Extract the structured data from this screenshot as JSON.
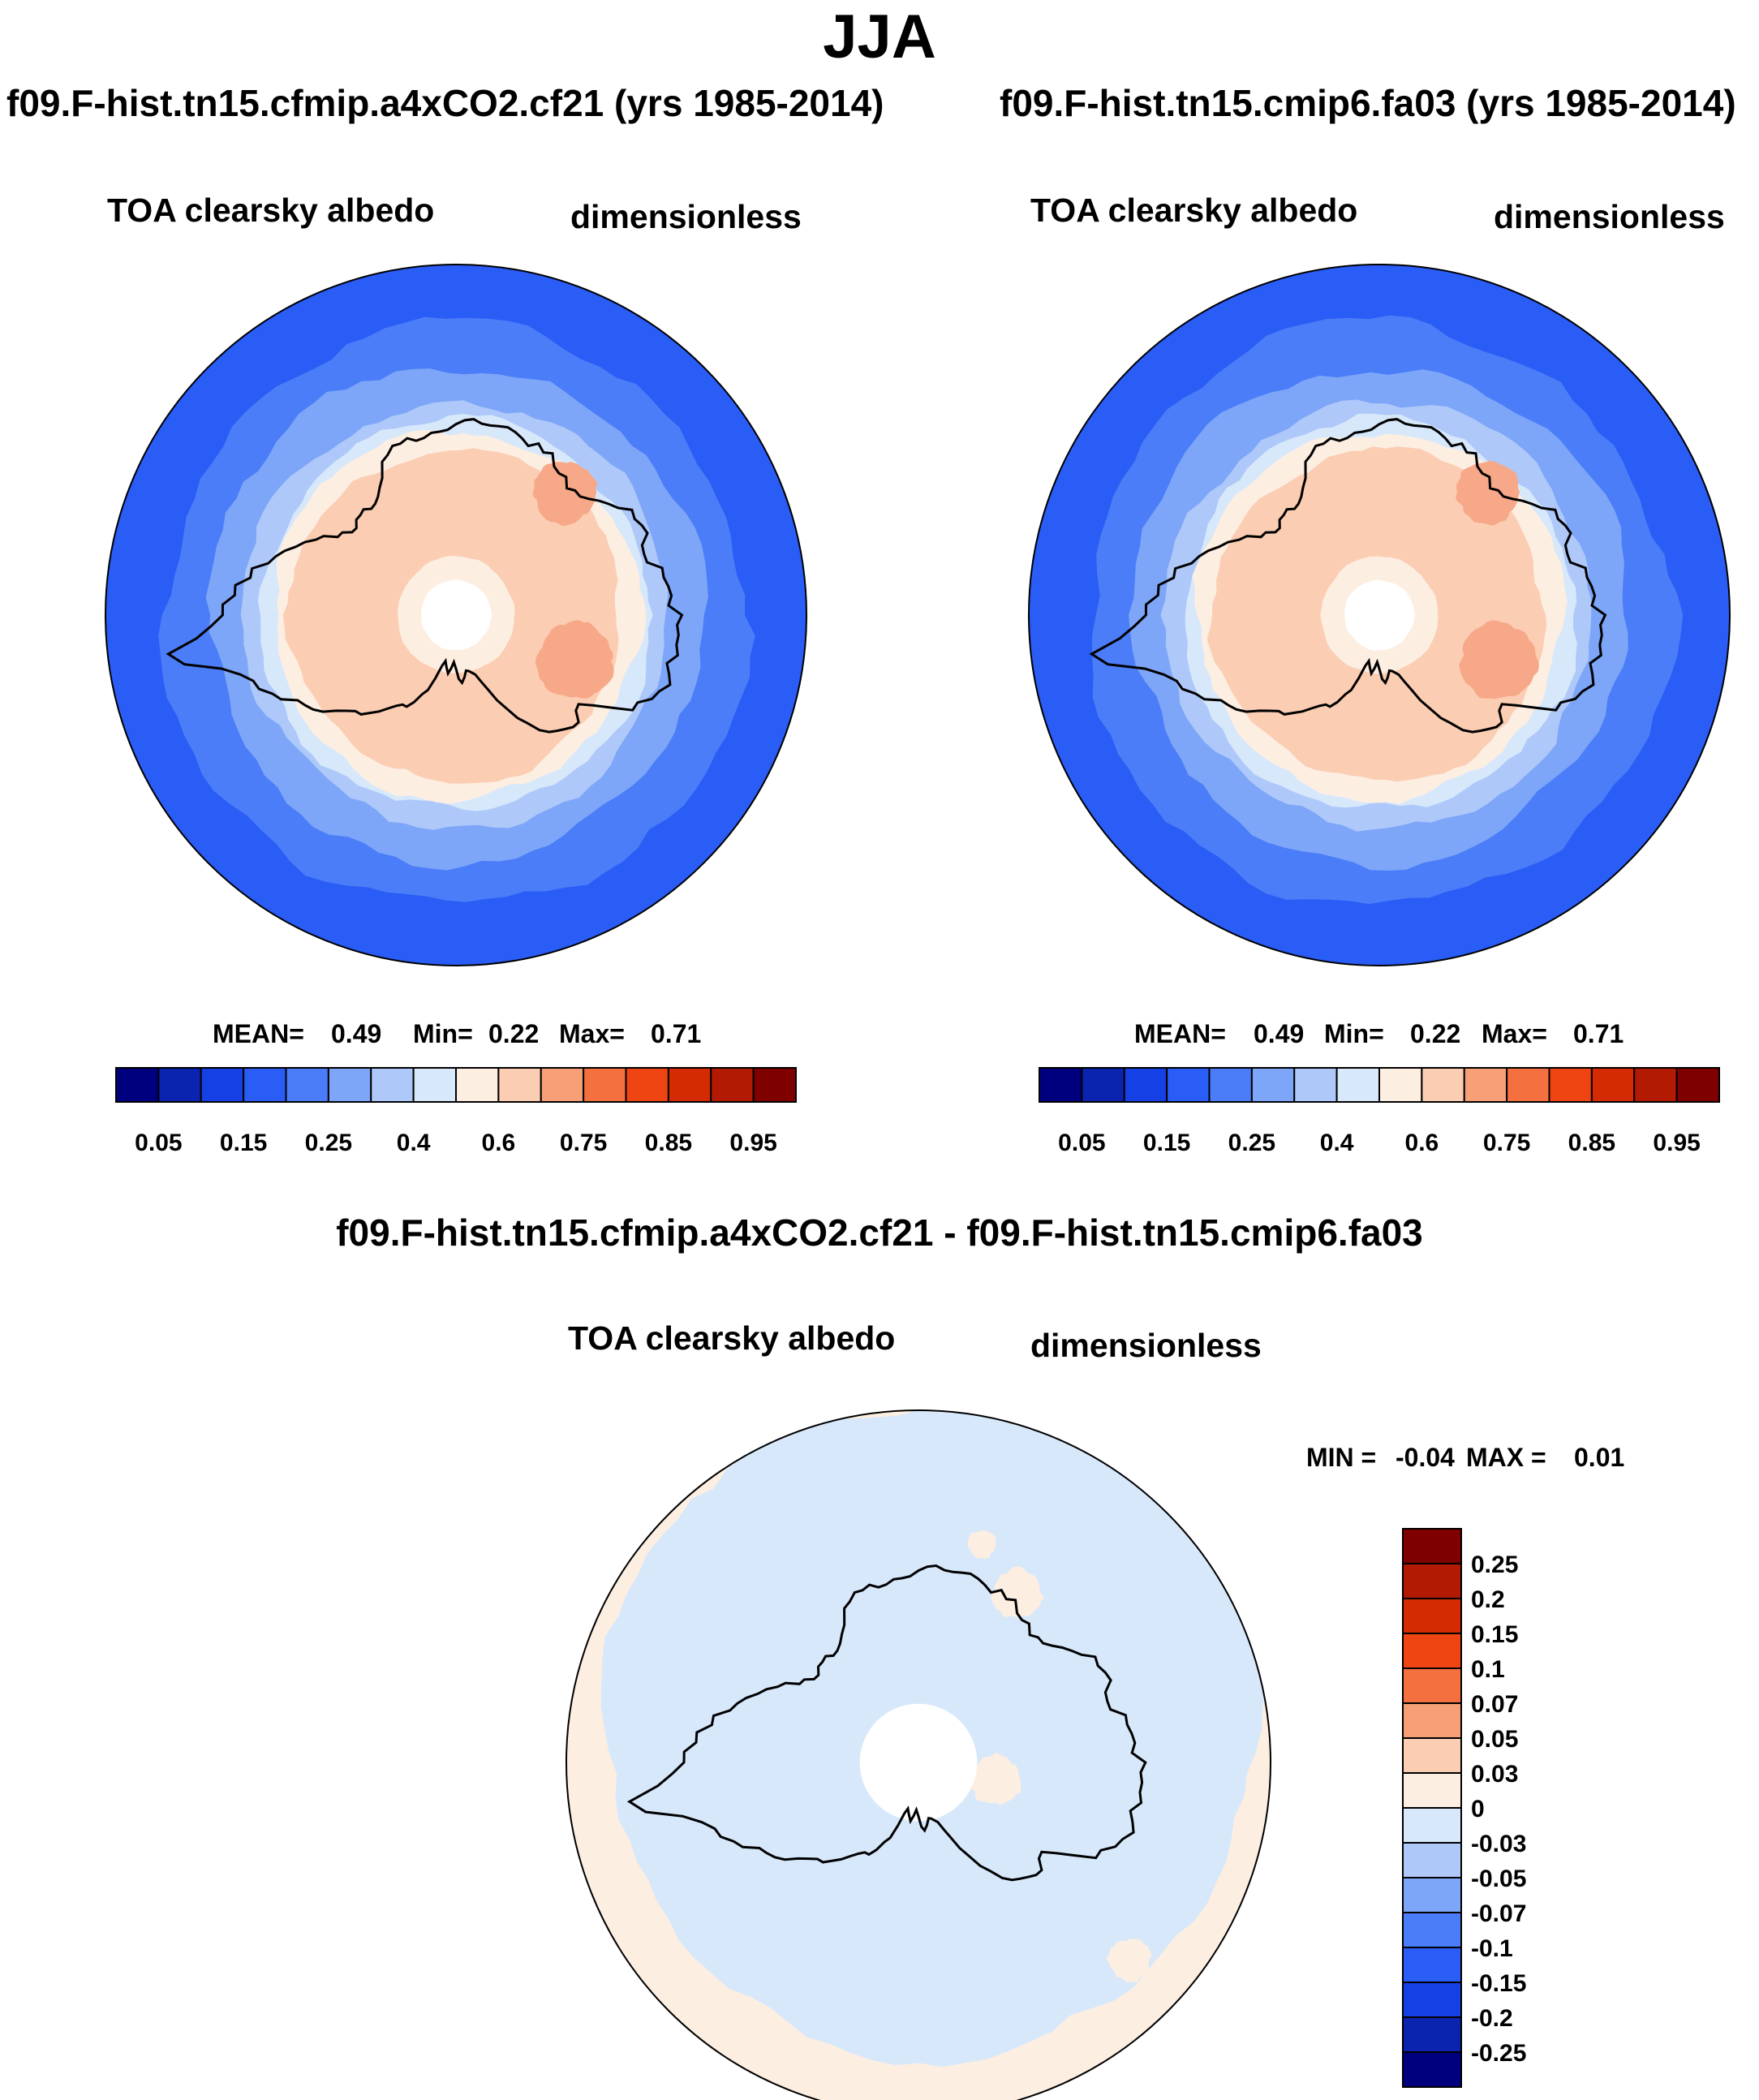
{
  "figure": {
    "season": "JJA",
    "case_a_title": "f09.F-hist.tn15.cfmip.a4xCO2.cf21 (yrs 1985-2014)",
    "case_b_title": "f09.F-hist.tn15.cmip6.fa03 (yrs 1985-2014)",
    "diff_title": "f09.F-hist.tn15.cfmip.a4xCO2.cf21 - f09.F-hist.tn15.cmip6.fa03"
  },
  "chart_data": [
    {
      "type": "heatmap",
      "projection": "south-polar-stereographic",
      "title": "f09.F-hist.tn15.cfmip.a4xCO2.cf21 (yrs 1985-2014)",
      "variable": "TOA clearsky albedo",
      "units": "dimensionless",
      "stats": {
        "mean_label": "MEAN=",
        "mean": "0.49",
        "min_label": "Min=",
        "min": "0.22",
        "max_label": "Max=",
        "max": "0.71"
      },
      "colorbar": {
        "levels": [
          "0.05",
          "0.15",
          "0.25",
          "0.4",
          "0.6",
          "0.75",
          "0.85",
          "0.95"
        ],
        "colors": [
          "#00007f",
          "#0a24b0",
          "#1540e6",
          "#2a5cf6",
          "#4a7df7",
          "#7da6f8",
          "#aec8f9",
          "#d7e8fb",
          "#fdeee2",
          "#fbcdb3",
          "#f79f77",
          "#f5703f",
          "#ee4512",
          "#d42b02",
          "#b21a04",
          "#7f0000"
        ]
      },
      "zones": [
        {
          "lat_edge": -40,
          "level": 0.225,
          "color": "#4a7df7"
        },
        {
          "lat_edge": -47.5,
          "level": 0.3,
          "color": "#7da6f8"
        },
        {
          "lat_edge": -53.5,
          "level": 0.35,
          "color": "#aec8f9"
        },
        {
          "lat_edge": -56.5,
          "level": 0.45,
          "color": "#d7e8fb"
        },
        {
          "lat_edge": -58.5,
          "level": 0.55,
          "color": "#fdeee2"
        },
        {
          "lat_edge": -61.5,
          "level": 0.65,
          "color": "#fbcdb3"
        },
        {
          "lat_edge": -80,
          "level": 0.55,
          "color": "#fdeee2"
        },
        {
          "lat_edge": -84,
          "level": null,
          "color": "#ffffff"
        }
      ],
      "maxima_color": "#f7a888",
      "coastline_color": "#000000"
    },
    {
      "type": "heatmap",
      "projection": "south-polar-stereographic",
      "title": "f09.F-hist.tn15.cmip6.fa03 (yrs 1985-2014)",
      "variable": "TOA clearsky albedo",
      "units": "dimensionless",
      "stats": {
        "mean_label": "MEAN=",
        "mean": "0.49",
        "min_label": "Min=",
        "min": "0.22",
        "max_label": "Max=",
        "max": "0.71"
      },
      "colorbar": {
        "levels": [
          "0.05",
          "0.15",
          "0.25",
          "0.4",
          "0.6",
          "0.75",
          "0.85",
          "0.95"
        ],
        "colors": [
          "#00007f",
          "#0a24b0",
          "#1540e6",
          "#2a5cf6",
          "#4a7df7",
          "#7da6f8",
          "#aec8f9",
          "#d7e8fb",
          "#fdeee2",
          "#fbcdb3",
          "#f79f77",
          "#f5703f",
          "#ee4512",
          "#d42b02",
          "#b21a04",
          "#7f0000"
        ]
      },
      "zones": [
        {
          "lat_edge": -40,
          "level": 0.225,
          "color": "#4a7df7"
        },
        {
          "lat_edge": -47.5,
          "level": 0.3,
          "color": "#7da6f8"
        },
        {
          "lat_edge": -53.5,
          "level": 0.35,
          "color": "#aec8f9"
        },
        {
          "lat_edge": -56.5,
          "level": 0.45,
          "color": "#d7e8fb"
        },
        {
          "lat_edge": -58.5,
          "level": 0.55,
          "color": "#fdeee2"
        },
        {
          "lat_edge": -61.5,
          "level": 0.65,
          "color": "#fbcdb3"
        },
        {
          "lat_edge": -80,
          "level": 0.55,
          "color": "#fdeee2"
        },
        {
          "lat_edge": -84,
          "level": null,
          "color": "#ffffff"
        }
      ],
      "maxima_color": "#f7a888",
      "coastline_color": "#000000"
    },
    {
      "type": "heatmap",
      "projection": "south-polar-stereographic",
      "title": "f09.F-hist.tn15.cfmip.a4xCO2.cf21 - f09.F-hist.tn15.cmip6.fa03",
      "variable": "TOA clearsky albedo",
      "units": "dimensionless",
      "stats": {
        "min_label": "MIN =",
        "min": "-0.04",
        "max_label": "MAX =",
        "max": "0.01"
      },
      "colorbar": {
        "orientation": "vertical",
        "levels": [
          "0.25",
          "0.2",
          "0.15",
          "0.1",
          "0.07",
          "0.05",
          "0.03",
          "0",
          "-0.03",
          "-0.05",
          "-0.07",
          "-0.1",
          "-0.15",
          "-0.2",
          "-0.25"
        ],
        "colors": [
          "#7f0000",
          "#b21a04",
          "#d42b02",
          "#ee4512",
          "#f5703f",
          "#f79f77",
          "#fbcdb3",
          "#fdeee2",
          "#d7e8fb",
          "#aec8f9",
          "#7da6f8",
          "#4a7df7",
          "#2a5cf6",
          "#1540e6",
          "#0a24b0",
          "#00007f"
        ]
      },
      "background_color": "#d7e8fb",
      "positive_color": "#fdeee2",
      "coastline_color": "#000000"
    }
  ]
}
